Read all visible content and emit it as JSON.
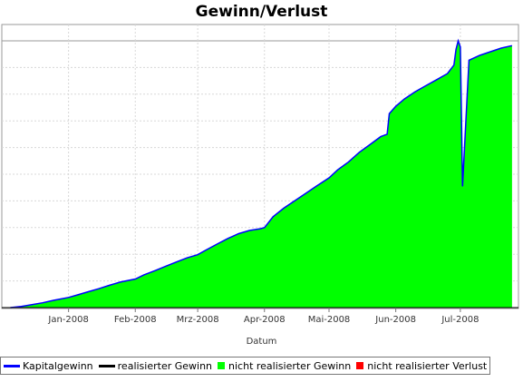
{
  "chart_data": {
    "type": "area",
    "title": "Gewinn/Verlust",
    "xlabel": "Datum",
    "ylabel": "",
    "x_range": [
      "2007-12-01",
      "2008-07-28"
    ],
    "ylim": [
      0,
      1100
    ],
    "grid": true,
    "legend_position": "bottom-left",
    "x_ticks": [
      {
        "date": "2008-01-01",
        "label": "Jan-2008"
      },
      {
        "date": "2008-02-01",
        "label": "Feb-2008"
      },
      {
        "date": "2008-03-01",
        "label": "Mrz-2008"
      },
      {
        "date": "2008-04-01",
        "label": "Apr-2008"
      },
      {
        "date": "2008-05-01",
        "label": "Mai-2008"
      },
      {
        "date": "2008-06-01",
        "label": "Jun-2008"
      },
      {
        "date": "2008-07-01",
        "label": "Jul-2008"
      }
    ],
    "series": [
      {
        "name": "Kapitalgewinn",
        "color": "#0000ff",
        "x": [
          "2007-12-05",
          "2007-12-10",
          "2007-12-15",
          "2007-12-20",
          "2007-12-25",
          "2008-01-01",
          "2008-01-05",
          "2008-01-10",
          "2008-01-15",
          "2008-01-20",
          "2008-01-25",
          "2008-02-01",
          "2008-02-05",
          "2008-02-10",
          "2008-02-15",
          "2008-02-20",
          "2008-02-25",
          "2008-03-01",
          "2008-03-05",
          "2008-03-10",
          "2008-03-15",
          "2008-03-20",
          "2008-03-25",
          "2008-03-30",
          "2008-04-01",
          "2008-04-05",
          "2008-04-10",
          "2008-04-15",
          "2008-04-20",
          "2008-04-25",
          "2008-05-01",
          "2008-05-05",
          "2008-05-10",
          "2008-05-15",
          "2008-05-20",
          "2008-05-25",
          "2008-05-28",
          "2008-05-29",
          "2008-06-01",
          "2008-06-05",
          "2008-06-10",
          "2008-06-15",
          "2008-06-20",
          "2008-06-25",
          "2008-06-28",
          "2008-06-29",
          "2008-06-30",
          "2008-07-01",
          "2008-07-02",
          "2008-07-05",
          "2008-07-10",
          "2008-07-15",
          "2008-07-20",
          "2008-07-25"
        ],
        "values": [
          0,
          5,
          12,
          20,
          30,
          42,
          52,
          65,
          78,
          92,
          105,
          118,
          135,
          152,
          170,
          188,
          205,
          218,
          238,
          262,
          285,
          305,
          318,
          325,
          330,
          375,
          410,
          440,
          470,
          500,
          535,
          568,
          600,
          640,
          672,
          705,
          715,
          800,
          830,
          860,
          890,
          915,
          940,
          965,
          1000,
          1065,
          1100,
          1075,
          500,
          1020,
          1040,
          1055,
          1070,
          1080
        ]
      },
      {
        "name": "realisierter Gewinn",
        "color": "#000000"
      },
      {
        "name": "nicht realisierter Gewinn",
        "color": "#00ff00"
      },
      {
        "name": "nicht realisierter Verlust",
        "color": "#ff0000"
      }
    ]
  }
}
